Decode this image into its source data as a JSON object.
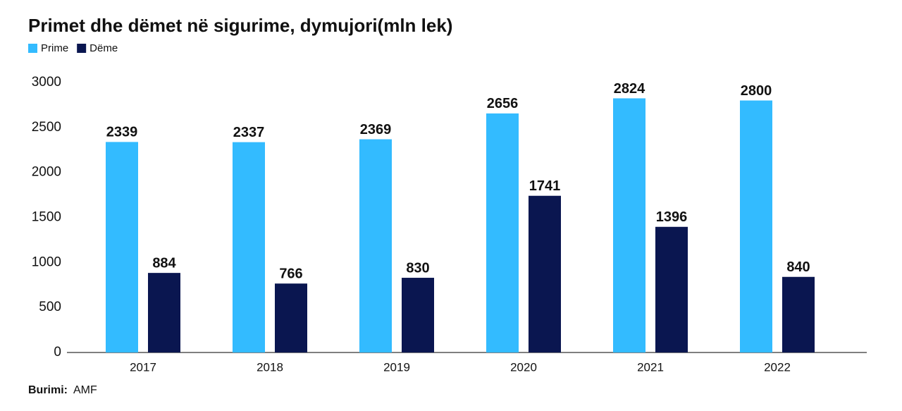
{
  "chart_data": {
    "type": "bar",
    "title": "Primet dhe dëmet në sigurime, dymujori(mln lek)",
    "categories": [
      "2017",
      "2018",
      "2019",
      "2020",
      "2021",
      "2022"
    ],
    "series": [
      {
        "name": "Prime",
        "color": "#33bbff",
        "values": [
          2339,
          2337,
          2369,
          2656,
          2824,
          2800
        ]
      },
      {
        "name": "Dëme",
        "color": "#0a1650",
        "values": [
          884,
          766,
          830,
          1741,
          1396,
          840
        ]
      }
    ],
    "ylim": [
      0,
      3000
    ],
    "yticks": [
      0,
      500,
      1000,
      1500,
      2000,
      2500,
      3000
    ],
    "legend": "top-left",
    "data_labels": true,
    "source_label": "Burimi:",
    "source": "AMF"
  }
}
